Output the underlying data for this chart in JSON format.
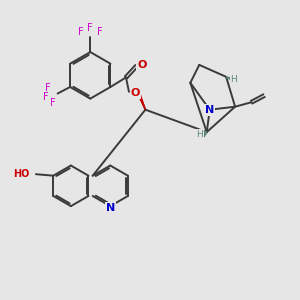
{
  "bg_color": "#e6e6e6",
  "bond_color": "#3a3a3a",
  "N_color": "#0000cc",
  "O_color": "#cc0000",
  "F_color": "#cc00cc",
  "stereo_color": "#5a8a7a",
  "figsize": [
    3.0,
    3.0
  ],
  "dpi": 100,
  "xlim": [
    0,
    10
  ],
  "ylim": [
    0,
    10
  ]
}
